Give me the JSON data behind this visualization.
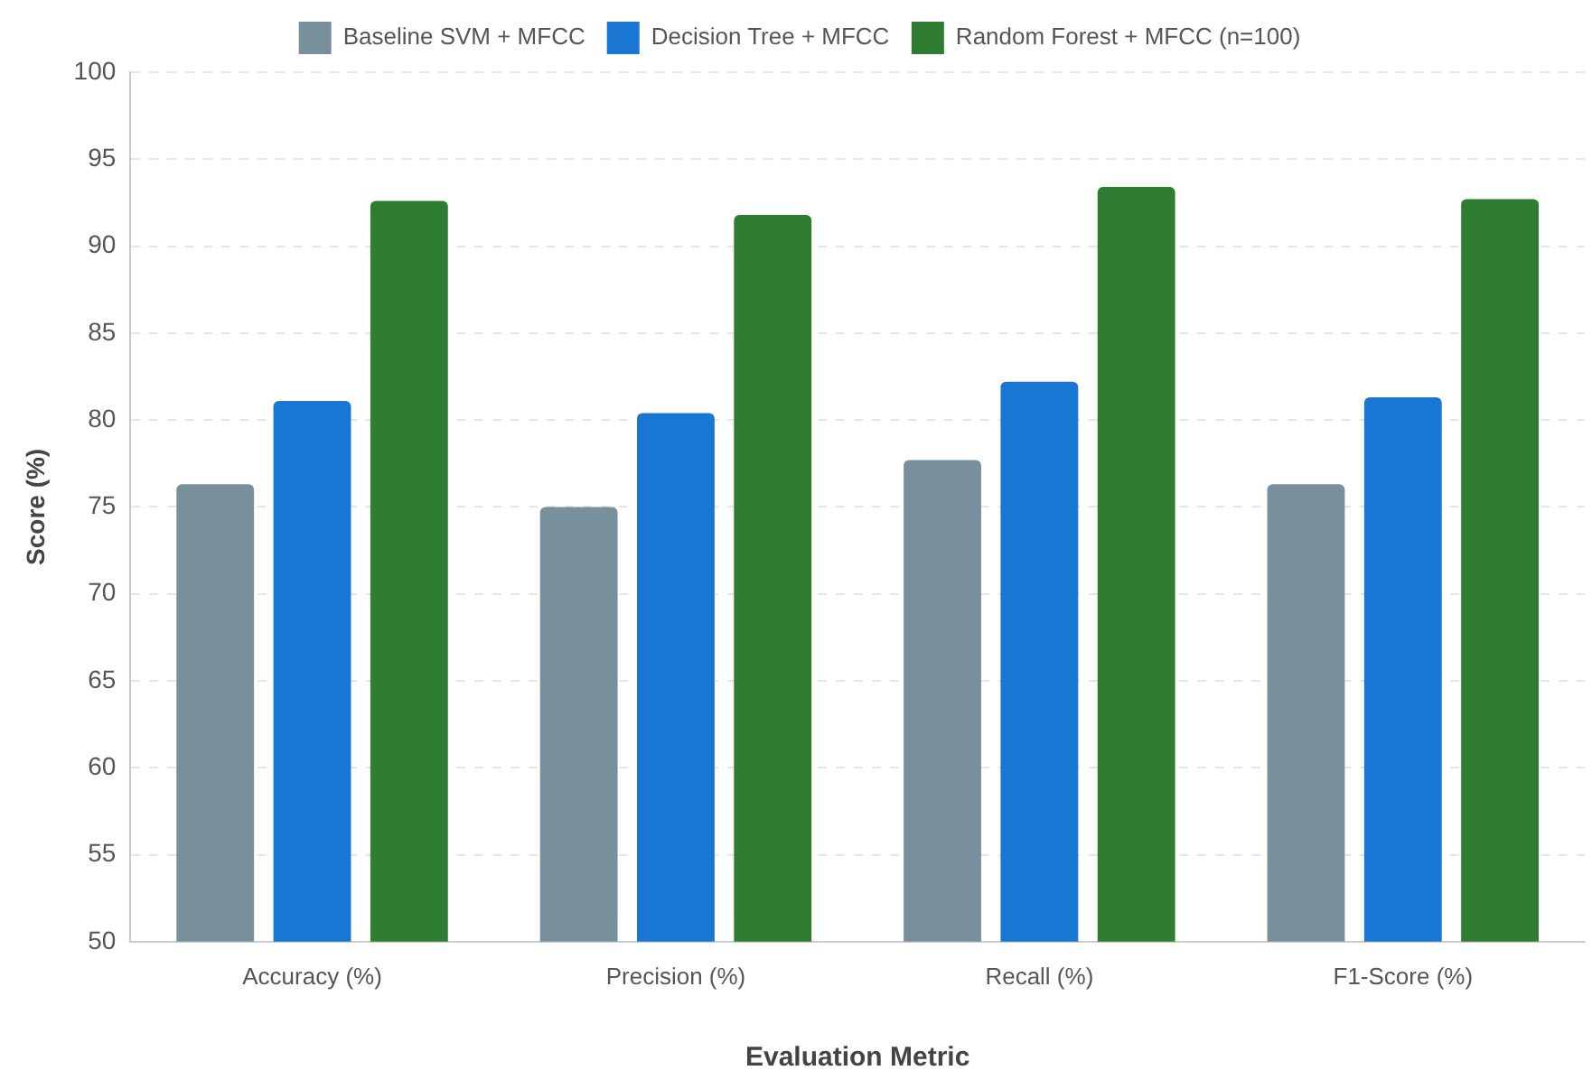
{
  "chart_data": {
    "type": "bar",
    "xlabel": "Evaluation Metric",
    "ylabel": "Score (%)",
    "categories": [
      "Accuracy (%)",
      "Precision (%)",
      "Recall (%)",
      "F1-Score (%)"
    ],
    "series": [
      {
        "name": "Baseline SVM + MFCC",
        "color": "#78909c",
        "values": [
          76.3,
          75.0,
          77.7,
          76.3
        ]
      },
      {
        "name": "Decision Tree + MFCC",
        "color": "#1976d2",
        "values": [
          81.1,
          80.4,
          82.2,
          81.3
        ]
      },
      {
        "name": "Random Forest + MFCC (n=100)",
        "color": "#2e7d32",
        "values": [
          92.6,
          91.8,
          93.4,
          92.7
        ]
      }
    ],
    "ylim": [
      50,
      100
    ],
    "yticks": [
      50,
      55,
      60,
      65,
      70,
      75,
      80,
      85,
      90,
      95,
      100
    ],
    "grid": "y",
    "legend": "top"
  }
}
